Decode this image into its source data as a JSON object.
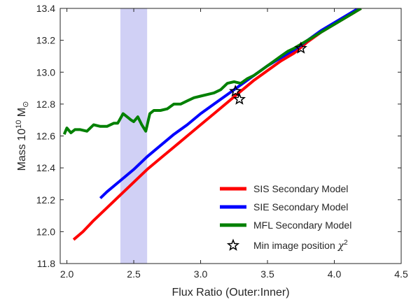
{
  "chart_data": {
    "type": "line",
    "xlabel": "Flux Ratio (Outer:Inner)",
    "ylabel_main": "Mass 10",
    "ylabel_exp": "10",
    "ylabel_unit": " M",
    "ylabel_sub": "⊙",
    "xlim": [
      1.95,
      4.5
    ],
    "ylim": [
      11.8,
      13.4
    ],
    "xticks": [
      "2.0",
      "2.5",
      "3.0",
      "3.5",
      "4.0",
      "4.5"
    ],
    "yticks": [
      "11.8",
      "12.0",
      "12.2",
      "12.4",
      "12.6",
      "12.8",
      "13.0",
      "13.2",
      "13.4"
    ],
    "xtick_values": [
      2.0,
      2.5,
      3.0,
      3.5,
      4.0,
      4.5
    ],
    "ytick_values": [
      11.8,
      12.0,
      12.2,
      12.4,
      12.6,
      12.8,
      13.0,
      13.2,
      13.4
    ],
    "shaded_band": {
      "x": [
        2.4,
        2.6
      ],
      "color": "#d0d0f5"
    },
    "series": [
      {
        "name": "SIS Secondary Model",
        "color": "#ff0000",
        "x": [
          2.05,
          2.12,
          2.2,
          2.3,
          2.4,
          2.5,
          2.6,
          2.7,
          2.8,
          2.9,
          3.0,
          3.1,
          3.2,
          3.3,
          3.4,
          3.5,
          3.6,
          3.7,
          3.8,
          3.9,
          4.0,
          4.1,
          4.2
        ],
        "y": [
          11.95,
          12.0,
          12.07,
          12.15,
          12.23,
          12.31,
          12.39,
          12.46,
          12.53,
          12.6,
          12.67,
          12.74,
          12.81,
          12.88,
          12.95,
          13.01,
          13.07,
          13.12,
          13.19,
          13.25,
          13.3,
          13.35,
          13.4
        ]
      },
      {
        "name": "SIE Secondary Model",
        "color": "#0000ff",
        "x": [
          2.25,
          2.3,
          2.4,
          2.5,
          2.6,
          2.7,
          2.8,
          2.9,
          3.0,
          3.1,
          3.2,
          3.3,
          3.4,
          3.5,
          3.6,
          3.7,
          3.8,
          3.9,
          4.0,
          4.1,
          4.2
        ],
        "y": [
          12.21,
          12.25,
          12.32,
          12.39,
          12.47,
          12.54,
          12.61,
          12.67,
          12.74,
          12.8,
          12.86,
          12.92,
          12.98,
          13.04,
          13.09,
          13.14,
          13.2,
          13.26,
          13.31,
          13.36,
          13.41
        ]
      },
      {
        "name": "MFL Secondary Model",
        "color": "#008000",
        "x": [
          1.98,
          2.0,
          2.03,
          2.06,
          2.1,
          2.15,
          2.2,
          2.25,
          2.3,
          2.35,
          2.38,
          2.42,
          2.45,
          2.48,
          2.5,
          2.53,
          2.56,
          2.59,
          2.62,
          2.65,
          2.7,
          2.75,
          2.8,
          2.85,
          2.9,
          2.95,
          3.0,
          3.05,
          3.1,
          3.15,
          3.2,
          3.25,
          3.3,
          3.35,
          3.4,
          3.45,
          3.5,
          3.55,
          3.6,
          3.65,
          3.7,
          3.8,
          3.9,
          4.0,
          4.1,
          4.2
        ],
        "y": [
          12.61,
          12.65,
          12.62,
          12.64,
          12.64,
          12.63,
          12.67,
          12.66,
          12.66,
          12.68,
          12.68,
          12.74,
          12.72,
          12.7,
          12.69,
          12.72,
          12.67,
          12.63,
          12.74,
          12.76,
          12.76,
          12.77,
          12.8,
          12.8,
          12.82,
          12.84,
          12.85,
          12.86,
          12.87,
          12.89,
          12.93,
          12.94,
          12.93,
          12.96,
          12.98,
          13.01,
          13.04,
          13.07,
          13.1,
          13.13,
          13.15,
          13.2,
          13.25,
          13.3,
          13.35,
          13.4
        ]
      }
    ],
    "markers": {
      "name": "Min image position χ²",
      "legend_main": "Min image position ",
      "legend_chi": "χ",
      "legend_exp": "2",
      "points": [
        {
          "x": 3.26,
          "y": 12.88
        },
        {
          "x": 3.29,
          "y": 12.83
        },
        {
          "x": 3.75,
          "y": 13.15
        }
      ]
    },
    "legend_placement": "bottom-right",
    "grid": false
  }
}
